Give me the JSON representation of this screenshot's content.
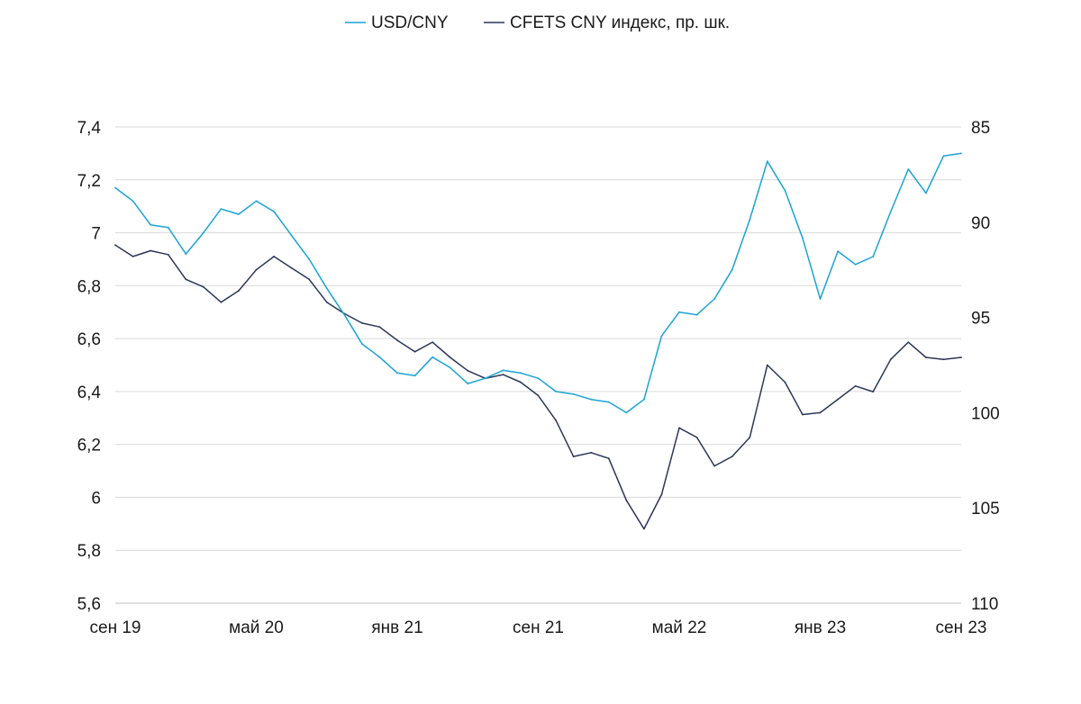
{
  "chart_data": {
    "type": "line",
    "title": "",
    "xlabel": "",
    "legend": {
      "placement": "top-center",
      "entries": [
        {
          "label": "USD/CNY",
          "color": "#1aa3d6"
        },
        {
          "label": "CFETS CNY индекс, пр. шк.",
          "color": "#2b3658"
        }
      ]
    },
    "x_ticks": [
      "сен 19",
      "май 20",
      "янв 21",
      "сен 21",
      "май 22",
      "янв 23",
      "сен 23"
    ],
    "x_tick_dates": [
      "2019-09",
      "2020-05",
      "2021-01",
      "2021-09",
      "2022-05",
      "2023-01",
      "2023-09"
    ],
    "y_left": {
      "ticks": [
        "5,6",
        "5,8",
        "6",
        "6,2",
        "6,4",
        "6,6",
        "6,8",
        "7",
        "7,2",
        "7,4"
      ],
      "ylim": [
        5.6,
        7.4
      ]
    },
    "y_right": {
      "ticks": [
        "85",
        "90",
        "95",
        "100",
        "105",
        "110"
      ],
      "ylim": [
        110,
        85
      ],
      "inverted": true
    },
    "grid": true,
    "series": [
      {
        "name": "USD/CNY",
        "axis": "left",
        "color": "#1aa3d6",
        "points": [
          [
            "2019-09",
            7.17
          ],
          [
            "2019-10",
            7.12
          ],
          [
            "2019-11",
            7.03
          ],
          [
            "2019-12",
            7.02
          ],
          [
            "2020-01",
            6.92
          ],
          [
            "2020-02",
            7.0
          ],
          [
            "2020-03",
            7.09
          ],
          [
            "2020-04",
            7.07
          ],
          [
            "2020-05",
            7.12
          ],
          [
            "2020-06",
            7.08
          ],
          [
            "2020-07",
            6.99
          ],
          [
            "2020-08",
            6.9
          ],
          [
            "2020-09",
            6.79
          ],
          [
            "2020-10",
            6.69
          ],
          [
            "2020-11",
            6.58
          ],
          [
            "2020-12",
            6.53
          ],
          [
            "2021-01",
            6.47
          ],
          [
            "2021-02",
            6.46
          ],
          [
            "2021-03",
            6.53
          ],
          [
            "2021-04",
            6.49
          ],
          [
            "2021-05",
            6.43
          ],
          [
            "2021-06",
            6.45
          ],
          [
            "2021-07",
            6.48
          ],
          [
            "2021-08",
            6.47
          ],
          [
            "2021-09",
            6.45
          ],
          [
            "2021-10",
            6.4
          ],
          [
            "2021-11",
            6.39
          ],
          [
            "2021-12",
            6.37
          ],
          [
            "2022-01",
            6.36
          ],
          [
            "2022-02",
            6.32
          ],
          [
            "2022-03",
            6.37
          ],
          [
            "2022-04",
            6.61
          ],
          [
            "2022-05",
            6.7
          ],
          [
            "2022-06",
            6.69
          ],
          [
            "2022-07",
            6.75
          ],
          [
            "2022-08",
            6.86
          ],
          [
            "2022-09",
            7.05
          ],
          [
            "2022-10",
            7.27
          ],
          [
            "2022-11",
            7.16
          ],
          [
            "2022-12",
            6.98
          ],
          [
            "2023-01",
            6.75
          ],
          [
            "2023-02",
            6.93
          ],
          [
            "2023-03",
            6.88
          ],
          [
            "2023-04",
            6.91
          ],
          [
            "2023-05",
            7.08
          ],
          [
            "2023-06",
            7.24
          ],
          [
            "2023-07",
            7.15
          ],
          [
            "2023-08",
            7.29
          ],
          [
            "2023-09",
            7.3
          ]
        ]
      },
      {
        "name": "CFETS CNY индекс, пр. шк.",
        "axis": "right",
        "color": "#2b3658",
        "points": [
          [
            "2019-09",
            91.2
          ],
          [
            "2019-10",
            91.8
          ],
          [
            "2019-11",
            91.5
          ],
          [
            "2019-12",
            91.7
          ],
          [
            "2020-01",
            93.0
          ],
          [
            "2020-02",
            93.4
          ],
          [
            "2020-03",
            94.2
          ],
          [
            "2020-04",
            93.6
          ],
          [
            "2020-05",
            92.5
          ],
          [
            "2020-06",
            91.8
          ],
          [
            "2020-07",
            92.4
          ],
          [
            "2020-08",
            93.0
          ],
          [
            "2020-09",
            94.2
          ],
          [
            "2020-10",
            94.8
          ],
          [
            "2020-11",
            95.3
          ],
          [
            "2020-12",
            95.5
          ],
          [
            "2021-01",
            96.2
          ],
          [
            "2021-02",
            96.8
          ],
          [
            "2021-03",
            96.3
          ],
          [
            "2021-04",
            97.1
          ],
          [
            "2021-05",
            97.8
          ],
          [
            "2021-06",
            98.2
          ],
          [
            "2021-07",
            98.0
          ],
          [
            "2021-08",
            98.4
          ],
          [
            "2021-09",
            99.1
          ],
          [
            "2021-10",
            100.4
          ],
          [
            "2021-11",
            102.3
          ],
          [
            "2021-12",
            102.1
          ],
          [
            "2022-01",
            102.4
          ],
          [
            "2022-02",
            104.6
          ],
          [
            "2022-03",
            106.1
          ],
          [
            "2022-04",
            104.3
          ],
          [
            "2022-05",
            100.8
          ],
          [
            "2022-06",
            101.3
          ],
          [
            "2022-07",
            102.8
          ],
          [
            "2022-08",
            102.3
          ],
          [
            "2022-09",
            101.3
          ],
          [
            "2022-10",
            97.5
          ],
          [
            "2022-11",
            98.4
          ],
          [
            "2022-12",
            100.1
          ],
          [
            "2023-01",
            100.0
          ],
          [
            "2023-02",
            99.3
          ],
          [
            "2023-03",
            98.6
          ],
          [
            "2023-04",
            98.9
          ],
          [
            "2023-05",
            97.2
          ],
          [
            "2023-06",
            96.3
          ],
          [
            "2023-07",
            97.1
          ],
          [
            "2023-08",
            97.2
          ],
          [
            "2023-09",
            97.1
          ]
        ]
      }
    ]
  }
}
